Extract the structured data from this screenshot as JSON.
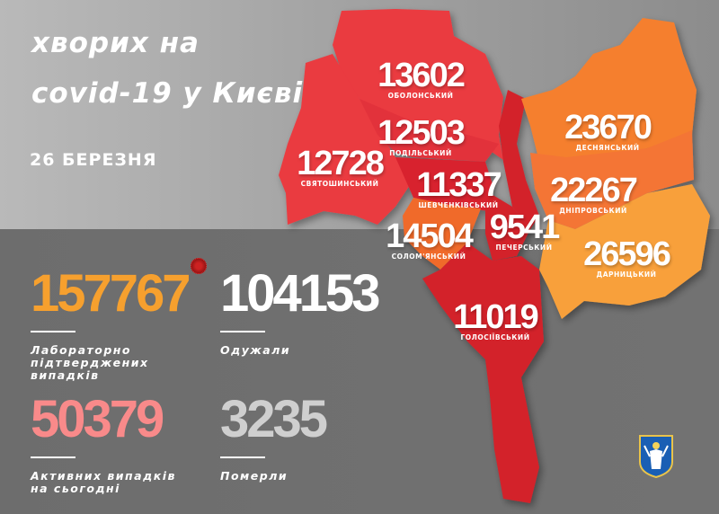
{
  "title_line1": "хворих на",
  "title_line2": "covid-19 у Києві",
  "date": "26 БЕРЕЗНЯ",
  "colors": {
    "red": "#e8323a",
    "dark_red": "#d0202a",
    "orange": "#f57f2e",
    "light_orange": "#f9a13a",
    "confirmed": "#f6a02e",
    "active": "#f98a8a",
    "deaths": "#cfcfcf"
  },
  "districts": [
    {
      "name": "ОБОЛОНСЬКИЙ",
      "count": "13602"
    },
    {
      "name": "ПОДІЛЬСЬКИЙ",
      "count": "12503"
    },
    {
      "name": "СВЯТОШИНСЬКИЙ",
      "count": "12728"
    },
    {
      "name": "ШЕВЧЕНКІВСЬКИЙ",
      "count": "11337"
    },
    {
      "name": "СОЛОМ'ЯНСЬКИЙ",
      "count": "14504"
    },
    {
      "name": "ПЕЧЕРСЬКИЙ",
      "count": "9541"
    },
    {
      "name": "ДЕСНЯНСЬКИЙ",
      "count": "23670"
    },
    {
      "name": "ДНІПРОВСЬКИЙ",
      "count": "22267"
    },
    {
      "name": "ДАРНИЦЬКИЙ",
      "count": "26596"
    },
    {
      "name": "ГОЛОСІЇВСЬКИЙ",
      "count": "11019"
    }
  ],
  "stats": {
    "confirmed": {
      "value": "157767",
      "caption_l1": "Лабораторно",
      "caption_l2": "підтверджених",
      "caption_l3": "випадків"
    },
    "recovered": {
      "value": "104153",
      "caption_l1": "Одужали"
    },
    "active": {
      "value": "50379",
      "caption_l1": "Активних випадків",
      "caption_l2": "на сьогодні"
    },
    "deaths": {
      "value": "3235",
      "caption_l1": "Померли"
    }
  },
  "icons": {
    "virus": "coronavirus-icon",
    "crest": "kyiv-coat-of-arms-icon"
  }
}
